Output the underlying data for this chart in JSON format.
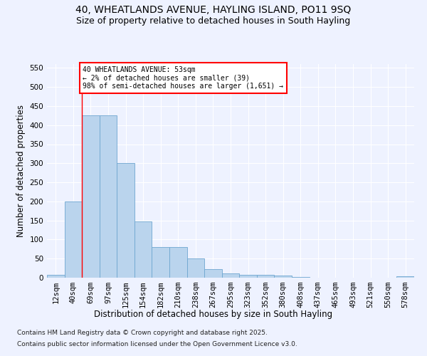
{
  "title1": "40, WHEATLANDS AVENUE, HAYLING ISLAND, PO11 9SQ",
  "title2": "Size of property relative to detached houses in South Hayling",
  "xlabel": "Distribution of detached houses by size in South Hayling",
  "ylabel": "Number of detached properties",
  "categories": [
    "12sqm",
    "40sqm",
    "69sqm",
    "97sqm",
    "125sqm",
    "154sqm",
    "182sqm",
    "210sqm",
    "238sqm",
    "267sqm",
    "295sqm",
    "323sqm",
    "352sqm",
    "380sqm",
    "408sqm",
    "437sqm",
    "465sqm",
    "493sqm",
    "521sqm",
    "550sqm",
    "578sqm"
  ],
  "values": [
    7,
    200,
    425,
    425,
    300,
    147,
    80,
    80,
    50,
    22,
    12,
    8,
    7,
    5,
    2,
    0,
    0,
    0,
    0,
    0,
    3
  ],
  "bar_color": "#bad4ed",
  "bar_edge_color": "#6ea6d0",
  "vline_x": 1,
  "vline_color": "red",
  "annotation_text": "40 WHEATLANDS AVENUE: 53sqm\n← 2% of detached houses are smaller (39)\n98% of semi-detached houses are larger (1,651) →",
  "annotation_box_color": "white",
  "annotation_box_edge": "red",
  "ylim": [
    0,
    560
  ],
  "yticks": [
    0,
    50,
    100,
    150,
    200,
    250,
    300,
    350,
    400,
    450,
    500,
    550
  ],
  "footer1": "Contains HM Land Registry data © Crown copyright and database right 2025.",
  "footer2": "Contains public sector information licensed under the Open Government Licence v3.0.",
  "bg_color": "#eef2ff",
  "plot_bg_color": "#eef2ff",
  "grid_color": "#ffffff",
  "title_fontsize": 10,
  "subtitle_fontsize": 9,
  "axis_label_fontsize": 8.5,
  "tick_fontsize": 7.5,
  "annotation_fontsize": 7,
  "footer_fontsize": 6.5
}
